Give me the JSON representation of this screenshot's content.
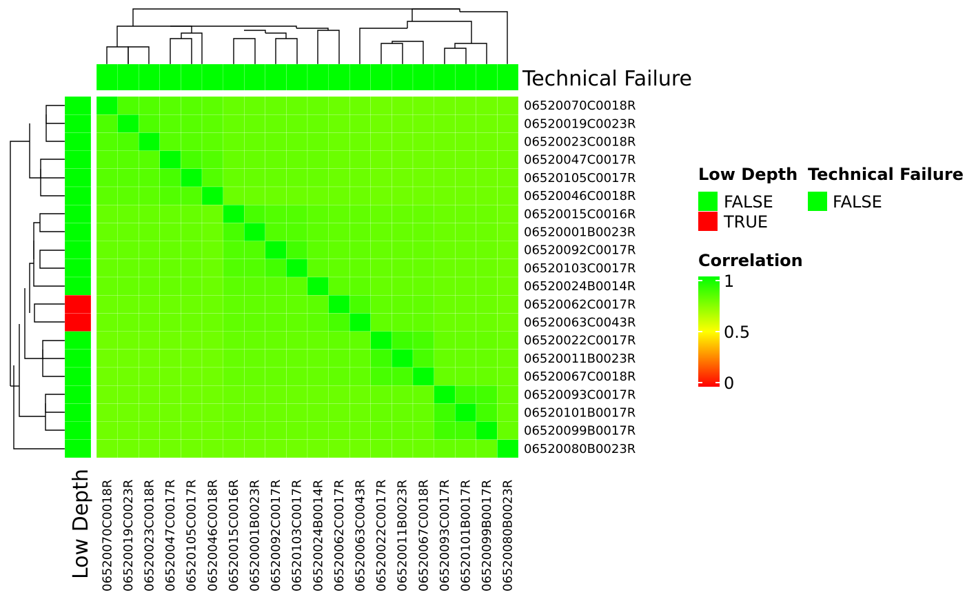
{
  "chart_data": {
    "type": "heatmap",
    "samples": [
      "06520070C0018R",
      "06520019C0023R",
      "06520023C0018R",
      "06520047C0017R",
      "06520105C0017R",
      "06520046C0018R",
      "06520015C0016R",
      "06520001B0023R",
      "06520092C0017R",
      "06520103C0017R",
      "06520024B0014R",
      "06520062C0017R",
      "06520063C0043R",
      "06520022C0017R",
      "06520011B0023R",
      "06520067C0018R",
      "06520093C0017R",
      "06520101B0017R",
      "06520099B0017R",
      "06520080B0023R"
    ],
    "correlation": [
      [
        1.0,
        0.85,
        0.84,
        0.83,
        0.83,
        0.82,
        0.8,
        0.8,
        0.8,
        0.8,
        0.8,
        0.79,
        0.79,
        0.78,
        0.78,
        0.78,
        0.78,
        0.78,
        0.78,
        0.78
      ],
      [
        0.85,
        1.0,
        0.85,
        0.83,
        0.83,
        0.82,
        0.8,
        0.8,
        0.8,
        0.8,
        0.8,
        0.79,
        0.79,
        0.78,
        0.78,
        0.78,
        0.78,
        0.78,
        0.78,
        0.78
      ],
      [
        0.84,
        0.85,
        1.0,
        0.83,
        0.83,
        0.82,
        0.8,
        0.8,
        0.8,
        0.8,
        0.8,
        0.79,
        0.79,
        0.78,
        0.78,
        0.78,
        0.78,
        0.78,
        0.78,
        0.78
      ],
      [
        0.83,
        0.83,
        0.83,
        1.0,
        0.86,
        0.84,
        0.8,
        0.8,
        0.8,
        0.8,
        0.8,
        0.79,
        0.79,
        0.78,
        0.78,
        0.78,
        0.78,
        0.78,
        0.78,
        0.78
      ],
      [
        0.83,
        0.83,
        0.83,
        0.86,
        1.0,
        0.84,
        0.8,
        0.8,
        0.8,
        0.8,
        0.8,
        0.79,
        0.79,
        0.78,
        0.78,
        0.78,
        0.78,
        0.78,
        0.78,
        0.78
      ],
      [
        0.82,
        0.82,
        0.82,
        0.84,
        0.84,
        1.0,
        0.79,
        0.79,
        0.79,
        0.79,
        0.79,
        0.79,
        0.79,
        0.78,
        0.78,
        0.78,
        0.78,
        0.78,
        0.78,
        0.78
      ],
      [
        0.8,
        0.8,
        0.8,
        0.8,
        0.8,
        0.79,
        1.0,
        0.86,
        0.84,
        0.84,
        0.82,
        0.81,
        0.81,
        0.8,
        0.8,
        0.8,
        0.79,
        0.79,
        0.79,
        0.78
      ],
      [
        0.8,
        0.8,
        0.8,
        0.8,
        0.8,
        0.79,
        0.86,
        1.0,
        0.84,
        0.84,
        0.82,
        0.81,
        0.81,
        0.8,
        0.8,
        0.8,
        0.79,
        0.79,
        0.79,
        0.78
      ],
      [
        0.8,
        0.8,
        0.8,
        0.8,
        0.8,
        0.79,
        0.84,
        0.84,
        1.0,
        0.87,
        0.82,
        0.81,
        0.81,
        0.8,
        0.8,
        0.8,
        0.79,
        0.79,
        0.79,
        0.78
      ],
      [
        0.8,
        0.8,
        0.8,
        0.8,
        0.8,
        0.79,
        0.84,
        0.84,
        0.87,
        1.0,
        0.82,
        0.81,
        0.81,
        0.8,
        0.8,
        0.8,
        0.79,
        0.79,
        0.79,
        0.78
      ],
      [
        0.8,
        0.8,
        0.8,
        0.8,
        0.8,
        0.79,
        0.82,
        0.82,
        0.82,
        0.82,
        1.0,
        0.82,
        0.82,
        0.8,
        0.8,
        0.8,
        0.79,
        0.79,
        0.79,
        0.78
      ],
      [
        0.79,
        0.79,
        0.79,
        0.79,
        0.79,
        0.79,
        0.81,
        0.81,
        0.81,
        0.81,
        0.82,
        1.0,
        0.86,
        0.81,
        0.81,
        0.81,
        0.79,
        0.79,
        0.79,
        0.78
      ],
      [
        0.79,
        0.79,
        0.79,
        0.79,
        0.79,
        0.79,
        0.81,
        0.81,
        0.81,
        0.81,
        0.82,
        0.86,
        1.0,
        0.81,
        0.81,
        0.81,
        0.79,
        0.79,
        0.79,
        0.78
      ],
      [
        0.78,
        0.78,
        0.78,
        0.78,
        0.78,
        0.78,
        0.8,
        0.8,
        0.8,
        0.8,
        0.8,
        0.81,
        0.81,
        1.0,
        0.88,
        0.86,
        0.8,
        0.8,
        0.8,
        0.79
      ],
      [
        0.78,
        0.78,
        0.78,
        0.78,
        0.78,
        0.78,
        0.8,
        0.8,
        0.8,
        0.8,
        0.8,
        0.81,
        0.81,
        0.88,
        1.0,
        0.86,
        0.8,
        0.8,
        0.8,
        0.79
      ],
      [
        0.78,
        0.78,
        0.78,
        0.78,
        0.78,
        0.78,
        0.8,
        0.8,
        0.8,
        0.8,
        0.8,
        0.81,
        0.81,
        0.86,
        0.86,
        1.0,
        0.8,
        0.8,
        0.8,
        0.79
      ],
      [
        0.78,
        0.78,
        0.78,
        0.78,
        0.78,
        0.78,
        0.79,
        0.79,
        0.79,
        0.79,
        0.79,
        0.79,
        0.79,
        0.8,
        0.8,
        0.8,
        1.0,
        0.88,
        0.87,
        0.8
      ],
      [
        0.78,
        0.78,
        0.78,
        0.78,
        0.78,
        0.78,
        0.79,
        0.79,
        0.79,
        0.79,
        0.79,
        0.79,
        0.79,
        0.8,
        0.8,
        0.8,
        0.88,
        1.0,
        0.87,
        0.8
      ],
      [
        0.78,
        0.78,
        0.78,
        0.78,
        0.78,
        0.78,
        0.79,
        0.79,
        0.79,
        0.79,
        0.79,
        0.79,
        0.79,
        0.8,
        0.8,
        0.8,
        0.87,
        0.87,
        1.0,
        0.8
      ],
      [
        0.78,
        0.78,
        0.78,
        0.78,
        0.78,
        0.78,
        0.78,
        0.78,
        0.78,
        0.78,
        0.78,
        0.78,
        0.78,
        0.79,
        0.79,
        0.79,
        0.8,
        0.8,
        0.8,
        1.0
      ]
    ],
    "col_dendrogram": [
      [
        1,
        2,
        0.12
      ],
      [
        4,
        5,
        0.22
      ],
      [
        3,
        "a",
        0.2
      ],
      [
        6,
        "b",
        0.3
      ],
      [
        9,
        10,
        0.22
      ],
      [
        8,
        "c",
        0.16
      ],
      [
        7,
        "d",
        0.36
      ],
      [
        11,
        12,
        0.18
      ],
      [
        13,
        15,
        0.2
      ],
      [
        14,
        "e",
        0.36
      ],
      [
        17,
        18,
        0.18
      ],
      [
        16,
        "f",
        0.38
      ],
      [
        19,
        "g",
        0.28
      ],
      [
        20,
        "h",
        0.62
      ],
      [
        0,
        "i",
        0.52
      ],
      [
        0,
        0,
        0
      ]
    ],
    "annotations": {
      "column": {
        "name": "Technical Failure",
        "values": [
          "FALSE",
          "FALSE",
          "FALSE",
          "FALSE",
          "FALSE",
          "FALSE",
          "FALSE",
          "FALSE",
          "FALSE",
          "FALSE",
          "FALSE",
          "FALSE",
          "FALSE",
          "FALSE",
          "FALSE",
          "FALSE",
          "FALSE",
          "FALSE",
          "FALSE",
          "FALSE"
        ]
      },
      "row": {
        "name": "Low Depth",
        "values": [
          "FALSE",
          "FALSE",
          "FALSE",
          "FALSE",
          "FALSE",
          "FALSE",
          "FALSE",
          "FALSE",
          "FALSE",
          "FALSE",
          "FALSE",
          "TRUE",
          "TRUE",
          "FALSE",
          "FALSE",
          "FALSE",
          "FALSE",
          "FALSE",
          "FALSE",
          "FALSE"
        ]
      }
    },
    "colors": {
      "FALSE": "#00ff00",
      "TRUE": "#ff0000",
      "scale": [
        "#ff0000",
        "#ffff00",
        "#00ff00"
      ]
    },
    "legend": {
      "annotation_titles": [
        "Low Depth",
        "Technical Failure"
      ],
      "low_depth_levels": [
        "FALSE",
        "TRUE"
      ],
      "technical_failure_levels": [
        "FALSE"
      ],
      "correlation_title": "Correlation",
      "correlation_ticks": [
        "1",
        "0.5",
        "0"
      ],
      "correlation_range": [
        0,
        1
      ],
      "placement": "right"
    }
  }
}
